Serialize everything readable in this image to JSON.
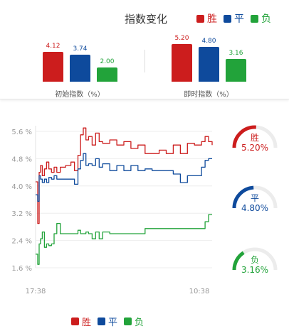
{
  "header": {
    "title": "指数变化"
  },
  "legend": [
    {
      "label": "胜",
      "color": "#cc1d1d"
    },
    {
      "label": "平",
      "color": "#0e4a9c"
    },
    {
      "label": "负",
      "color": "#22a33a"
    }
  ],
  "bars": {
    "initial": {
      "label": "初始指数（%）",
      "values": [
        "4.12",
        "3.74",
        "2.00"
      ]
    },
    "current": {
      "label": "即时指数（%）",
      "values": [
        "5.20",
        "4.80",
        "3.16"
      ]
    }
  },
  "gauges": [
    {
      "label": "胜",
      "value": "5.20%",
      "fraction": 0.52,
      "color": "#cc1d1d"
    },
    {
      "label": "平",
      "value": "4.80%",
      "fraction": 0.48,
      "color": "#0e4a9c"
    },
    {
      "label": "负",
      "value": "3.16%",
      "fraction": 0.316,
      "color": "#22a33a"
    }
  ],
  "chart_data": {
    "type": "line",
    "y_ticks": [
      "5.6 %",
      "4.8 %",
      "4.0 %",
      "3.2 %",
      "2.4 %",
      "1.6 %"
    ],
    "y_tick_values": [
      5.6,
      4.8,
      4.0,
      3.2,
      2.4,
      1.6
    ],
    "x_labels": [
      "17:38",
      "10:38"
    ],
    "ylim": [
      1.6,
      5.6
    ],
    "series": [
      {
        "name": "胜",
        "color": "#cc1d1d",
        "x": [
          0,
          0.6,
          1.2,
          2.0,
          2.8,
          3.8,
          5.0,
          6.2,
          7.5,
          9.0,
          10.5,
          12.0,
          14.0,
          17.0,
          20.0,
          22.0,
          24.0,
          25.5,
          27.0,
          28.5,
          30.0,
          32.0,
          34.0,
          36.0,
          38.0,
          42.0,
          46.0,
          50.0,
          54.0,
          58.0,
          62.0,
          66.0,
          70.0,
          74.0,
          78.0,
          82.0,
          86.0,
          90.0,
          94.0,
          96.0,
          98.0,
          100.0
        ],
        "values": [
          4.12,
          4.12,
          2.9,
          4.4,
          4.6,
          4.3,
          4.5,
          4.7,
          4.5,
          4.4,
          4.55,
          4.4,
          4.55,
          4.6,
          4.7,
          4.45,
          4.9,
          5.5,
          5.7,
          5.35,
          5.45,
          5.2,
          5.55,
          5.3,
          5.25,
          5.35,
          5.2,
          5.3,
          5.1,
          5.2,
          4.95,
          4.95,
          5.05,
          4.95,
          5.2,
          4.95,
          5.25,
          5.2,
          5.3,
          5.45,
          5.3,
          5.2
        ]
      },
      {
        "name": "平",
        "color": "#0e4a9c",
        "x": [
          0,
          0.6,
          1.2,
          2.0,
          2.8,
          3.8,
          5.0,
          6.2,
          7.5,
          9.0,
          10.5,
          12.0,
          14.0,
          17.0,
          20.0,
          22.0,
          24.0,
          25.5,
          27.0,
          28.5,
          30.0,
          32.0,
          34.0,
          36.0,
          38.0,
          42.0,
          46.0,
          50.0,
          54.0,
          58.0,
          62.0,
          66.0,
          70.0,
          74.0,
          78.0,
          82.0,
          86.0,
          90.0,
          94.0,
          96.0,
          98.0,
          100.0
        ],
        "values": [
          3.74,
          3.74,
          3.55,
          4.3,
          4.2,
          4.1,
          4.2,
          4.1,
          4.25,
          4.2,
          4.3,
          4.2,
          4.2,
          4.2,
          4.2,
          4.05,
          4.5,
          4.75,
          4.95,
          4.6,
          4.65,
          4.6,
          4.8,
          4.55,
          4.65,
          4.45,
          4.6,
          4.45,
          4.6,
          4.45,
          4.5,
          4.45,
          4.45,
          4.45,
          4.35,
          4.1,
          4.3,
          4.3,
          4.55,
          4.75,
          4.8,
          4.8
        ]
      },
      {
        "name": "负",
        "color": "#22a33a",
        "x": [
          0,
          0.6,
          1.2,
          2.0,
          2.8,
          3.8,
          5.0,
          6.2,
          7.5,
          9.0,
          10.5,
          12.0,
          14.0,
          17.0,
          20.0,
          22.0,
          24.0,
          25.5,
          27.0,
          28.5,
          30.0,
          32.0,
          34.0,
          36.0,
          38.0,
          42.0,
          46.0,
          50.0,
          54.0,
          58.0,
          62.0,
          66.0,
          70.0,
          74.0,
          78.0,
          82.0,
          86.0,
          90.0,
          94.0,
          96.0,
          98.0,
          100.0
        ],
        "values": [
          2.0,
          2.0,
          1.7,
          2.3,
          2.45,
          2.65,
          2.2,
          2.3,
          2.25,
          2.3,
          2.6,
          2.9,
          2.6,
          2.6,
          2.6,
          2.6,
          2.7,
          2.6,
          2.6,
          2.65,
          2.6,
          2.45,
          2.65,
          2.45,
          2.65,
          2.6,
          2.6,
          2.6,
          2.6,
          2.6,
          2.75,
          2.75,
          2.75,
          2.75,
          2.75,
          2.75,
          2.75,
          2.75,
          2.75,
          2.95,
          3.16,
          3.16
        ]
      }
    ]
  }
}
